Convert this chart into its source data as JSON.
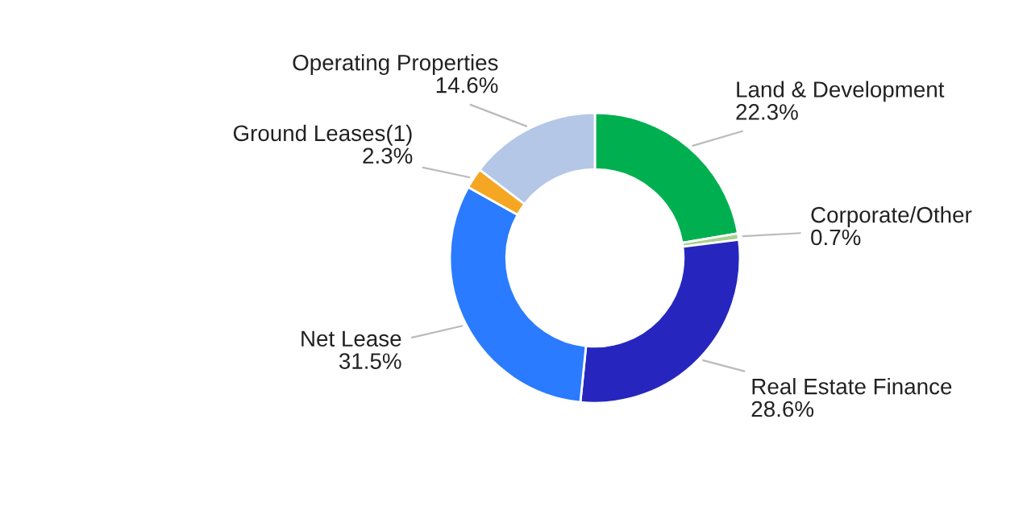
{
  "chart_data": {
    "type": "donut",
    "categories": [
      "Land & Development",
      "Corporate/Other",
      "Real Estate Finance",
      "Net Lease",
      "Ground Leases(1)",
      "Operating Properties"
    ],
    "values": [
      22.3,
      0.7,
      28.6,
      31.5,
      2.3,
      14.6
    ],
    "colors": [
      "#00b050",
      "#a9d18e",
      "#2626bf",
      "#2a7bff",
      "#f5a623",
      "#b4c7e7"
    ],
    "value_labels": [
      "22.3%",
      "0.7%",
      "28.6%",
      "31.5%",
      "2.3%",
      "14.6%"
    ],
    "legend": false
  }
}
